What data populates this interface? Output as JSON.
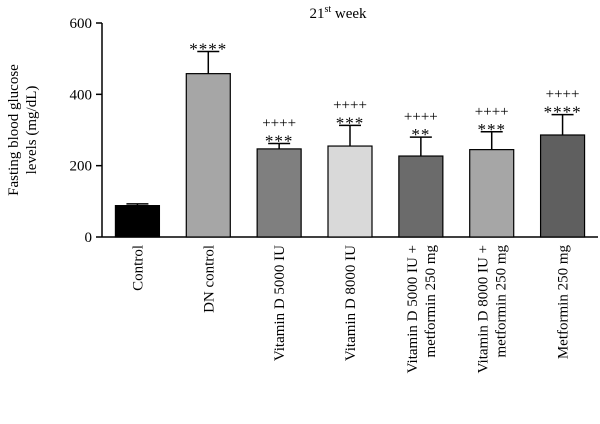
{
  "chart_data": {
    "type": "bar",
    "title": "21",
    "title_superscript": "st",
    "title_suffix": " week",
    "ylabel_line1": "Fasting blood glucose",
    "ylabel_line2": "levels (mg/dL)",
    "ylim": [
      0,
      600
    ],
    "yticks": [
      "0",
      "200",
      "400",
      "600"
    ],
    "ytick_values": [
      0,
      200,
      400,
      600
    ],
    "grid": false,
    "bars": [
      {
        "label_lines": [
          "Control"
        ],
        "value": 88,
        "error": 5,
        "color": "#000000",
        "sig_star": "",
        "sig_plus": ""
      },
      {
        "label_lines": [
          "DN control"
        ],
        "value": 458,
        "error": 62,
        "color": "#a6a6a6",
        "sig_star": "****",
        "sig_plus": ""
      },
      {
        "label_lines": [
          "Vitamin D 5000 IU"
        ],
        "value": 247,
        "error": 15,
        "color": "#7f7f7f",
        "sig_star": "***",
        "sig_plus": "++++"
      },
      {
        "label_lines": [
          "Vitamin D 8000 IU"
        ],
        "value": 255,
        "error": 58,
        "color": "#d9d9d9",
        "sig_star": "***",
        "sig_plus": "++++"
      },
      {
        "label_lines": [
          "Vitamin D 5000 IU +",
          "metformin 250 mg"
        ],
        "value": 227,
        "error": 53,
        "color": "#6b6b6b",
        "sig_star": "**",
        "sig_plus": "++++"
      },
      {
        "label_lines": [
          "Vitamin D 8000 IU +",
          "metformin 250 mg"
        ],
        "value": 245,
        "error": 50,
        "color": "#a6a6a6",
        "sig_star": "***",
        "sig_plus": "++++"
      },
      {
        "label_lines": [
          "Metformin 250 mg"
        ],
        "value": 286,
        "error": 57,
        "color": "#5f5f5f",
        "sig_star": "****",
        "sig_plus": "++++"
      }
    ]
  }
}
